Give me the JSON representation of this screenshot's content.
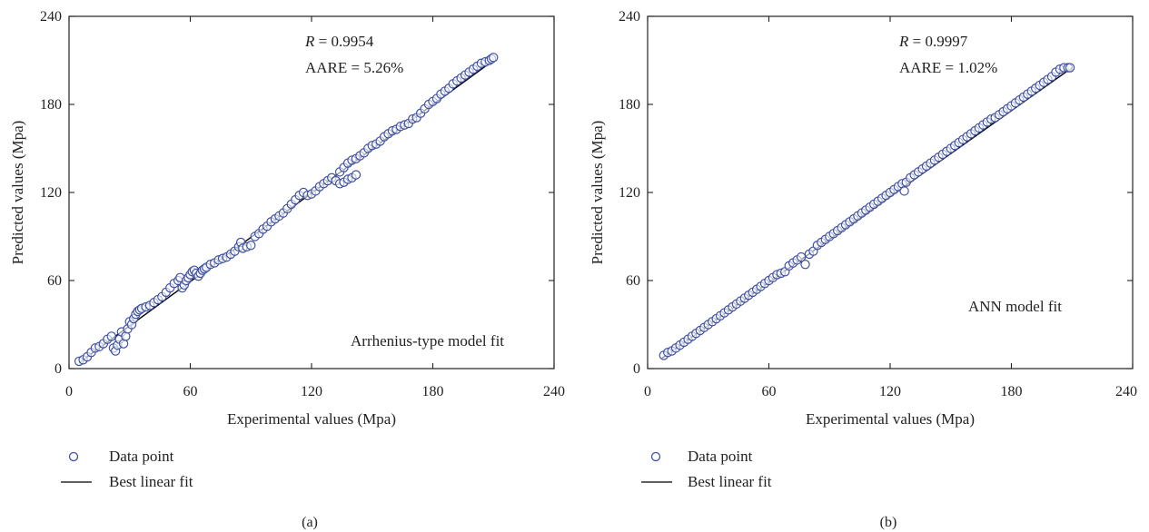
{
  "colors": {
    "marker": "#3f51a3",
    "fit_line": "#000000",
    "axes": "#222222"
  },
  "chart_data": [
    {
      "type": "scatter",
      "panel": "(a)",
      "xlabel": "Experimental values (Mpa)",
      "ylabel": "Predicted values (Mpa)",
      "xlim": [
        0,
        240
      ],
      "ylim": [
        0,
        240
      ],
      "xticks": [
        "0",
        "60",
        "120",
        "180",
        "240"
      ],
      "yticks": [
        "0",
        "60",
        "120",
        "180",
        "240"
      ],
      "annotations": {
        "r_symbol": "R",
        "r_value": " = 0.9954",
        "aare": "AARE = 5.26%",
        "model": "Arrhenius-type model fit"
      },
      "legend": {
        "placement": "below",
        "marker_label": "Data point",
        "line_label": "Best linear fit"
      },
      "fit_line": {
        "x": [
          5,
          210
        ],
        "y": [
          4,
          210
        ]
      },
      "series": [
        {
          "marker": "open-circle",
          "points": [
            [
              5,
              5
            ],
            [
              7,
              6
            ],
            [
              9,
              8
            ],
            [
              11,
              11
            ],
            [
              13,
              14
            ],
            [
              15,
              15
            ],
            [
              17,
              17
            ],
            [
              19,
              20
            ],
            [
              21,
              22
            ],
            [
              22,
              14
            ],
            [
              23,
              12
            ],
            [
              24,
              16
            ],
            [
              25,
              20
            ],
            [
              26,
              25
            ],
            [
              27,
              17
            ],
            [
              28,
              22
            ],
            [
              29,
              27
            ],
            [
              30,
              32
            ],
            [
              31,
              30
            ],
            [
              32,
              34
            ],
            [
              33,
              37
            ],
            [
              34,
              39
            ],
            [
              35,
              40
            ],
            [
              36,
              41
            ],
            [
              38,
              42
            ],
            [
              40,
              43
            ],
            [
              42,
              45
            ],
            [
              44,
              47
            ],
            [
              46,
              49
            ],
            [
              48,
              52
            ],
            [
              50,
              55
            ],
            [
              52,
              58
            ],
            [
              54,
              60
            ],
            [
              55,
              62
            ],
            [
              56,
              55
            ],
            [
              57,
              57
            ],
            [
              58,
              60
            ],
            [
              59,
              62
            ],
            [
              60,
              64
            ],
            [
              61,
              66
            ],
            [
              62,
              67
            ],
            [
              63,
              65
            ],
            [
              64,
              63
            ],
            [
              65,
              65
            ],
            [
              66,
              67
            ],
            [
              67,
              68
            ],
            [
              68,
              69
            ],
            [
              70,
              71
            ],
            [
              72,
              72
            ],
            [
              74,
              74
            ],
            [
              76,
              75
            ],
            [
              78,
              76
            ],
            [
              80,
              78
            ],
            [
              82,
              80
            ],
            [
              84,
              83
            ],
            [
              85,
              86
            ],
            [
              86,
              82
            ],
            [
              88,
              83
            ],
            [
              90,
              84
            ],
            [
              92,
              90
            ],
            [
              94,
              92
            ],
            [
              96,
              95
            ],
            [
              98,
              97
            ],
            [
              100,
              100
            ],
            [
              102,
              102
            ],
            [
              104,
              104
            ],
            [
              106,
              106
            ],
            [
              108,
              109
            ],
            [
              110,
              112
            ],
            [
              112,
              115
            ],
            [
              114,
              118
            ],
            [
              116,
              120
            ],
            [
              118,
              118
            ],
            [
              120,
              119
            ],
            [
              122,
              121
            ],
            [
              124,
              124
            ],
            [
              126,
              126
            ],
            [
              128,
              128
            ],
            [
              130,
              130
            ],
            [
              132,
              128
            ],
            [
              134,
              126
            ],
            [
              136,
              127
            ],
            [
              138,
              129
            ],
            [
              140,
              130
            ],
            [
              142,
              132
            ],
            [
              134,
              134
            ],
            [
              136,
              137
            ],
            [
              138,
              140
            ],
            [
              140,
              142
            ],
            [
              142,
              143
            ],
            [
              144,
              145
            ],
            [
              146,
              147
            ],
            [
              148,
              150
            ],
            [
              150,
              152
            ],
            [
              152,
              153
            ],
            [
              154,
              155
            ],
            [
              156,
              158
            ],
            [
              158,
              160
            ],
            [
              160,
              162
            ],
            [
              162,
              163
            ],
            [
              164,
              165
            ],
            [
              166,
              166
            ],
            [
              168,
              167
            ],
            [
              170,
              170
            ],
            [
              172,
              171
            ],
            [
              174,
              174
            ],
            [
              176,
              177
            ],
            [
              178,
              180
            ],
            [
              180,
              182
            ],
            [
              182,
              184
            ],
            [
              184,
              187
            ],
            [
              186,
              189
            ],
            [
              188,
              191
            ],
            [
              190,
              194
            ],
            [
              192,
              196
            ],
            [
              194,
              198
            ],
            [
              196,
              200
            ],
            [
              198,
              202
            ],
            [
              200,
              204
            ],
            [
              202,
              206
            ],
            [
              204,
              208
            ],
            [
              206,
              209
            ],
            [
              208,
              210
            ],
            [
              209,
              211
            ],
            [
              210,
              212
            ]
          ]
        }
      ]
    },
    {
      "type": "scatter",
      "panel": "(b)",
      "xlabel": "Experimental values (Mpa)",
      "ylabel": "Predicted values (Mpa)",
      "xlim": [
        0,
        240
      ],
      "ylim": [
        0,
        240
      ],
      "xticks": [
        "0",
        "60",
        "120",
        "180",
        "240"
      ],
      "yticks": [
        "0",
        "60",
        "120",
        "180",
        "240"
      ],
      "annotations": {
        "r_symbol": "R",
        "r_value": " = 0.9997",
        "aare": "AARE = 1.02%",
        "model": "ANN model fit"
      },
      "legend": {
        "placement": "below",
        "marker_label": "Data point",
        "line_label": "Best linear fit"
      },
      "fit_line": {
        "x": [
          7,
          210
        ],
        "y": [
          7,
          205
        ]
      },
      "series": [
        {
          "marker": "open-circle",
          "points": [
            [
              8,
              9
            ],
            [
              10,
              11
            ],
            [
              12,
              12
            ],
            [
              14,
              14
            ],
            [
              16,
              16
            ],
            [
              18,
              18
            ],
            [
              20,
              20
            ],
            [
              22,
              22
            ],
            [
              24,
              24
            ],
            [
              26,
              26
            ],
            [
              28,
              28
            ],
            [
              30,
              30
            ],
            [
              32,
              32
            ],
            [
              34,
              34
            ],
            [
              36,
              36
            ],
            [
              38,
              38
            ],
            [
              40,
              40
            ],
            [
              42,
              42
            ],
            [
              44,
              44
            ],
            [
              46,
              46
            ],
            [
              48,
              48
            ],
            [
              50,
              50
            ],
            [
              52,
              52
            ],
            [
              54,
              54
            ],
            [
              56,
              56
            ],
            [
              58,
              58
            ],
            [
              60,
              60
            ],
            [
              62,
              62
            ],
            [
              64,
              64
            ],
            [
              66,
              65
            ],
            [
              68,
              66
            ],
            [
              70,
              70
            ],
            [
              72,
              72
            ],
            [
              74,
              74
            ],
            [
              76,
              76
            ],
            [
              78,
              71
            ],
            [
              80,
              78
            ],
            [
              82,
              80
            ],
            [
              84,
              84
            ],
            [
              86,
              86
            ],
            [
              88,
              88
            ],
            [
              90,
              90
            ],
            [
              92,
              92
            ],
            [
              94,
              94
            ],
            [
              96,
              96
            ],
            [
              98,
              98
            ],
            [
              100,
              100
            ],
            [
              102,
              102
            ],
            [
              104,
              104
            ],
            [
              106,
              106
            ],
            [
              108,
              108
            ],
            [
              110,
              110
            ],
            [
              112,
              112
            ],
            [
              114,
              114
            ],
            [
              116,
              116
            ],
            [
              118,
              118
            ],
            [
              120,
              120
            ],
            [
              122,
              122
            ],
            [
              124,
              124
            ],
            [
              126,
              126
            ],
            [
              127,
              121
            ],
            [
              128,
              127
            ],
            [
              130,
              130
            ],
            [
              132,
              132
            ],
            [
              134,
              134
            ],
            [
              136,
              136
            ],
            [
              138,
              138
            ],
            [
              140,
              140
            ],
            [
              142,
              142
            ],
            [
              144,
              144
            ],
            [
              146,
              146
            ],
            [
              148,
              148
            ],
            [
              150,
              150
            ],
            [
              152,
              152
            ],
            [
              154,
              154
            ],
            [
              156,
              156
            ],
            [
              158,
              158
            ],
            [
              160,
              160
            ],
            [
              162,
              162
            ],
            [
              164,
              164
            ],
            [
              166,
              166
            ],
            [
              168,
              168
            ],
            [
              170,
              170
            ],
            [
              172,
              171
            ],
            [
              174,
              173
            ],
            [
              176,
              175
            ],
            [
              178,
              177
            ],
            [
              180,
              179
            ],
            [
              182,
              181
            ],
            [
              184,
              183
            ],
            [
              186,
              185
            ],
            [
              188,
              187
            ],
            [
              190,
              189
            ],
            [
              192,
              191
            ],
            [
              194,
              193
            ],
            [
              196,
              195
            ],
            [
              198,
              197
            ],
            [
              200,
              199
            ],
            [
              202,
              202
            ],
            [
              204,
              204
            ],
            [
              206,
              205
            ],
            [
              208,
              205
            ],
            [
              209,
              205
            ]
          ]
        }
      ]
    }
  ]
}
